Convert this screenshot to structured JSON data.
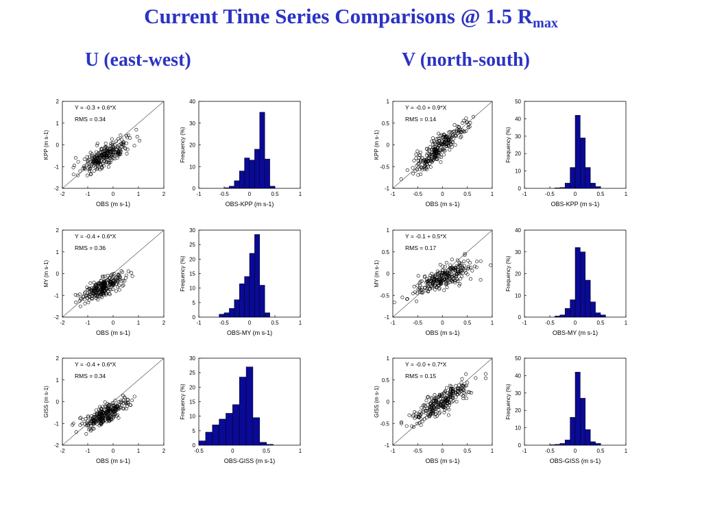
{
  "page": {
    "title_main": "Current Time Series Comparisons @ 1.5 R",
    "title_sub": "max",
    "col_u": "U (east-west)",
    "col_v": "V (north-south)"
  },
  "chart_data": [
    {
      "type": "scatter",
      "component": "U",
      "xlabel": "OBS (m s-1)",
      "ylabel": "KPP (m s-1)",
      "xlim": [
        -2,
        2
      ],
      "ylim": [
        -2,
        2
      ],
      "ticks": [
        -2,
        -1,
        0,
        1,
        2
      ],
      "fit": "Y =  -0.3 +   0.6*X",
      "rms": "RMS =  0.34",
      "slope": 0.6,
      "intercept": -0.3,
      "x_center": -0.35,
      "x_spread": 0.42,
      "noise": 0.25,
      "seed": 11
    },
    {
      "type": "bar",
      "component": "U",
      "xlabel": "OBS-KPP (m s-1)",
      "ylabel": "Frequency (%)",
      "xlim": [
        -1,
        1
      ],
      "xticks": [
        -1,
        -0.5,
        0,
        0.5,
        1
      ],
      "ylim": [
        0,
        40
      ],
      "yticks": [
        0,
        10,
        20,
        30,
        40
      ],
      "bins": [
        {
          "x": -0.45,
          "v": 0.3
        },
        {
          "x": -0.35,
          "v": 1
        },
        {
          "x": -0.25,
          "v": 3.5
        },
        {
          "x": -0.15,
          "v": 8
        },
        {
          "x": -0.05,
          "v": 14
        },
        {
          "x": 0.05,
          "v": 13
        },
        {
          "x": 0.15,
          "v": 18
        },
        {
          "x": 0.25,
          "v": 35
        },
        {
          "x": 0.35,
          "v": 13.5
        },
        {
          "x": 0.45,
          "v": 1
        }
      ],
      "binwidth": 0.1
    },
    {
      "type": "scatter",
      "component": "V",
      "xlabel": "OBS (m s-1)",
      "ylabel": "KPP (m s-1)",
      "xlim": [
        -1,
        1
      ],
      "ylim": [
        -1,
        1
      ],
      "ticks": [
        -1,
        -0.5,
        0,
        0.5,
        1
      ],
      "fit": "Y =  -0.0 +   0.9*X",
      "rms": "RMS =  0.14",
      "slope": 0.9,
      "intercept": 0.0,
      "x_center": -0.05,
      "x_spread": 0.28,
      "noise": 0.13,
      "seed": 23
    },
    {
      "type": "bar",
      "component": "V",
      "xlabel": "OBS-KPP (m s-1)",
      "ylabel": "Frequency (%)",
      "xlim": [
        -1,
        1
      ],
      "xticks": [
        -1,
        -0.5,
        0,
        0.5,
        1
      ],
      "ylim": [
        0,
        50
      ],
      "yticks": [
        0,
        10,
        20,
        30,
        40,
        50
      ],
      "bins": [
        {
          "x": -0.35,
          "v": 0.3
        },
        {
          "x": -0.25,
          "v": 0.5
        },
        {
          "x": -0.15,
          "v": 3
        },
        {
          "x": -0.05,
          "v": 12
        },
        {
          "x": 0.05,
          "v": 42
        },
        {
          "x": 0.15,
          "v": 29
        },
        {
          "x": 0.25,
          "v": 12
        },
        {
          "x": 0.35,
          "v": 3
        },
        {
          "x": 0.45,
          "v": 1
        }
      ],
      "binwidth": 0.1
    },
    {
      "type": "scatter",
      "component": "U",
      "xlabel": "OBS (m s-1)",
      "ylabel": "MY (m s-1)",
      "xlim": [
        -2,
        2
      ],
      "ylim": [
        -2,
        2
      ],
      "ticks": [
        -2,
        -1,
        0,
        1,
        2
      ],
      "fit": "Y =  -0.4 +   0.6*X",
      "rms": "RMS =  0.36",
      "slope": 0.6,
      "intercept": -0.4,
      "x_center": -0.4,
      "x_spread": 0.42,
      "noise": 0.2,
      "seed": 37
    },
    {
      "type": "bar",
      "component": "U",
      "xlabel": "OBS-MY (m s-1)",
      "ylabel": "Frequency (%)",
      "xlim": [
        -1,
        1
      ],
      "xticks": [
        -1,
        -0.5,
        0,
        0.5,
        1
      ],
      "ylim": [
        0,
        30
      ],
      "yticks": [
        0,
        5,
        10,
        15,
        20,
        25,
        30
      ],
      "bins": [
        {
          "x": -0.55,
          "v": 1
        },
        {
          "x": -0.45,
          "v": 1.5
        },
        {
          "x": -0.35,
          "v": 3
        },
        {
          "x": -0.25,
          "v": 6
        },
        {
          "x": -0.15,
          "v": 11.5
        },
        {
          "x": -0.05,
          "v": 14
        },
        {
          "x": 0.05,
          "v": 22
        },
        {
          "x": 0.15,
          "v": 28.5
        },
        {
          "x": 0.25,
          "v": 11
        },
        {
          "x": 0.35,
          "v": 1.5
        }
      ],
      "binwidth": 0.1
    },
    {
      "type": "scatter",
      "component": "V",
      "xlabel": "OBS (m s-1)",
      "ylabel": "MY (m s-1)",
      "xlim": [
        -1,
        1
      ],
      "ylim": [
        -1,
        1
      ],
      "ticks": [
        -1,
        -0.5,
        0,
        0.5,
        1
      ],
      "fit": "Y =  -0.1 +   0.5*X",
      "rms": "RMS =  0.17",
      "slope": 0.5,
      "intercept": -0.1,
      "x_center": 0.0,
      "x_spread": 0.3,
      "noise": 0.13,
      "seed": 51
    },
    {
      "type": "bar",
      "component": "V",
      "xlabel": "OBS-MY (m s-1)",
      "ylabel": "Frequency (%)",
      "xlim": [
        -1,
        1
      ],
      "xticks": [
        -1,
        -0.5,
        0,
        0.5,
        1
      ],
      "ylim": [
        0,
        40
      ],
      "yticks": [
        0,
        10,
        20,
        30,
        40
      ],
      "bins": [
        {
          "x": -0.35,
          "v": 0.5
        },
        {
          "x": -0.25,
          "v": 1
        },
        {
          "x": -0.15,
          "v": 4
        },
        {
          "x": -0.05,
          "v": 8
        },
        {
          "x": 0.05,
          "v": 32
        },
        {
          "x": 0.15,
          "v": 30
        },
        {
          "x": 0.25,
          "v": 17
        },
        {
          "x": 0.35,
          "v": 7
        },
        {
          "x": 0.45,
          "v": 2
        },
        {
          "x": 0.55,
          "v": 1
        }
      ],
      "binwidth": 0.1
    },
    {
      "type": "scatter",
      "component": "U",
      "xlabel": "OBS (m s-1)",
      "ylabel": "GISS (m s-1)",
      "xlim": [
        -2,
        2
      ],
      "ylim": [
        -2,
        2
      ],
      "ticks": [
        -2,
        -1,
        0,
        1,
        2
      ],
      "fit": "Y =  -0.4 +   0.6*X",
      "rms": "RMS =  0.34",
      "slope": 0.6,
      "intercept": -0.4,
      "x_center": -0.35,
      "x_spread": 0.42,
      "noise": 0.2,
      "seed": 67
    },
    {
      "type": "bar",
      "component": "U",
      "xlabel": "OBS-GISS (m s-1)",
      "ylabel": "Frequency (%)",
      "xlim": [
        -0.5,
        1
      ],
      "xticks": [
        -0.5,
        0,
        0.5,
        1
      ],
      "ylim": [
        0,
        30
      ],
      "yticks": [
        0,
        5,
        10,
        15,
        20,
        25,
        30
      ],
      "bins": [
        {
          "x": -0.45,
          "v": 1.5
        },
        {
          "x": -0.35,
          "v": 4.5
        },
        {
          "x": -0.25,
          "v": 7
        },
        {
          "x": -0.15,
          "v": 9
        },
        {
          "x": -0.05,
          "v": 11
        },
        {
          "x": 0.05,
          "v": 14
        },
        {
          "x": 0.15,
          "v": 23.5
        },
        {
          "x": 0.25,
          "v": 27
        },
        {
          "x": 0.35,
          "v": 9.5
        },
        {
          "x": 0.45,
          "v": 1
        },
        {
          "x": 0.55,
          "v": 0.3
        }
      ],
      "binwidth": 0.1
    },
    {
      "type": "scatter",
      "component": "V",
      "xlabel": "OBS (m s-1)",
      "ylabel": "GISS (m s-1)",
      "xlim": [
        -1,
        1
      ],
      "ylim": [
        -1,
        1
      ],
      "ticks": [
        -1,
        -0.5,
        0,
        0.5,
        1
      ],
      "fit": "Y =  -0.0 +   0.7*X",
      "rms": "RMS =  0.15",
      "slope": 0.7,
      "intercept": 0.0,
      "x_center": 0.0,
      "x_spread": 0.3,
      "noise": 0.12,
      "seed": 79
    },
    {
      "type": "bar",
      "component": "V",
      "xlabel": "OBS-GISS (m s-1)",
      "ylabel": "Frequency (%)",
      "xlim": [
        -1,
        1
      ],
      "xticks": [
        -1,
        -0.5,
        0,
        0.5,
        1
      ],
      "ylim": [
        0,
        50
      ],
      "yticks": [
        0,
        10,
        20,
        30,
        40,
        50
      ],
      "bins": [
        {
          "x": -0.45,
          "v": 0.3
        },
        {
          "x": -0.35,
          "v": 0.5
        },
        {
          "x": -0.25,
          "v": 1
        },
        {
          "x": -0.15,
          "v": 3
        },
        {
          "x": -0.05,
          "v": 16
        },
        {
          "x": 0.05,
          "v": 42
        },
        {
          "x": 0.15,
          "v": 27
        },
        {
          "x": 0.25,
          "v": 9
        },
        {
          "x": 0.35,
          "v": 2
        },
        {
          "x": 0.45,
          "v": 1
        }
      ],
      "binwidth": 0.1
    }
  ]
}
